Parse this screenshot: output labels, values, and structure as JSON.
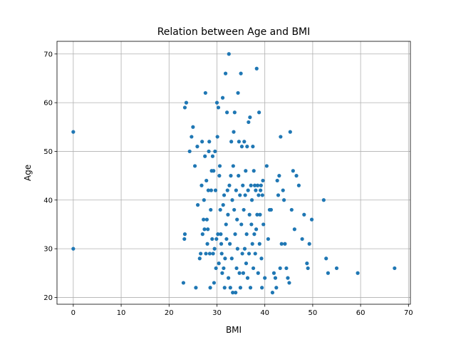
{
  "chart_data": {
    "type": "scatter",
    "title": "Relation between Age and BMI",
    "xlabel": "BMI",
    "ylabel": "Age",
    "xlim": [
      -3.4,
      70.4
    ],
    "ylim": [
      18.6,
      72.6
    ],
    "xticks": [
      0,
      10,
      20,
      30,
      40,
      50,
      60,
      70
    ],
    "yticks": [
      20,
      30,
      40,
      50,
      60,
      70
    ],
    "grid": true,
    "point_color": "#1f77b4",
    "points": [
      [
        0,
        54
      ],
      [
        0,
        30
      ],
      [
        23.0,
        23
      ],
      [
        23.3,
        59
      ],
      [
        23.6,
        60
      ],
      [
        23.3,
        33
      ],
      [
        23.2,
        32
      ],
      [
        24.3,
        50
      ],
      [
        24.7,
        53
      ],
      [
        25.0,
        55
      ],
      [
        25.4,
        47
      ],
      [
        25.6,
        22
      ],
      [
        25.9,
        51
      ],
      [
        26.0,
        39
      ],
      [
        26.4,
        28
      ],
      [
        26.6,
        29
      ],
      [
        26.8,
        43
      ],
      [
        26.9,
        52
      ],
      [
        27.0,
        33
      ],
      [
        27.2,
        36
      ],
      [
        27.3,
        40
      ],
      [
        27.4,
        34
      ],
      [
        27.5,
        49
      ],
      [
        27.6,
        62
      ],
      [
        27.7,
        29
      ],
      [
        27.8,
        44
      ],
      [
        27.9,
        36
      ],
      [
        28.0,
        31
      ],
      [
        28.1,
        34
      ],
      [
        28.2,
        42
      ],
      [
        28.3,
        50
      ],
      [
        28.4,
        52
      ],
      [
        28.5,
        29
      ],
      [
        28.6,
        22
      ],
      [
        28.7,
        38
      ],
      [
        28.8,
        42
      ],
      [
        28.9,
        46
      ],
      [
        29.0,
        32
      ],
      [
        29.1,
        49
      ],
      [
        29.2,
        29
      ],
      [
        29.3,
        46
      ],
      [
        29.4,
        23
      ],
      [
        29.5,
        30
      ],
      [
        29.6,
        50
      ],
      [
        29.7,
        42
      ],
      [
        29.8,
        26
      ],
      [
        29.9,
        32
      ],
      [
        30.0,
        60
      ],
      [
        30.1,
        53
      ],
      [
        30.2,
        33
      ],
      [
        30.3,
        59
      ],
      [
        30.4,
        27
      ],
      [
        30.5,
        45
      ],
      [
        30.6,
        47
      ],
      [
        30.7,
        38
      ],
      [
        30.8,
        33
      ],
      [
        30.9,
        31
      ],
      [
        31.0,
        29
      ],
      [
        31.1,
        25
      ],
      [
        31.2,
        61
      ],
      [
        31.3,
        39
      ],
      [
        31.4,
        26
      ],
      [
        31.5,
        41
      ],
      [
        31.6,
        22
      ],
      [
        31.7,
        28
      ],
      [
        31.8,
        66
      ],
      [
        31.9,
        35
      ],
      [
        32.0,
        32
      ],
      [
        32.1,
        58
      ],
      [
        32.2,
        42
      ],
      [
        32.3,
        37
      ],
      [
        32.4,
        24
      ],
      [
        32.5,
        70
      ],
      [
        32.6,
        43
      ],
      [
        32.7,
        31
      ],
      [
        32.8,
        22
      ],
      [
        32.9,
        45
      ],
      [
        33.0,
        52
      ],
      [
        33.1,
        28
      ],
      [
        33.2,
        40
      ],
      [
        33.3,
        21
      ],
      [
        33.4,
        47
      ],
      [
        33.5,
        54
      ],
      [
        33.6,
        38
      ],
      [
        33.7,
        58
      ],
      [
        33.8,
        33
      ],
      [
        33.9,
        21
      ],
      [
        34.0,
        42
      ],
      [
        34.1,
        26
      ],
      [
        34.2,
        36
      ],
      [
        34.3,
        30
      ],
      [
        34.4,
        62
      ],
      [
        34.5,
        45
      ],
      [
        34.6,
        52
      ],
      [
        34.7,
        25
      ],
      [
        34.8,
        41
      ],
      [
        34.9,
        22
      ],
      [
        35.0,
        66
      ],
      [
        35.1,
        35
      ],
      [
        35.2,
        51
      ],
      [
        35.3,
        29
      ],
      [
        35.4,
        43
      ],
      [
        35.5,
        25
      ],
      [
        35.6,
        38
      ],
      [
        35.7,
        52
      ],
      [
        35.8,
        30
      ],
      [
        35.9,
        41
      ],
      [
        36.0,
        46
      ],
      [
        36.1,
        27
      ],
      [
        36.2,
        33
      ],
      [
        36.3,
        51
      ],
      [
        36.4,
        24
      ],
      [
        36.5,
        42
      ],
      [
        36.6,
        56
      ],
      [
        36.7,
        29
      ],
      [
        36.8,
        37
      ],
      [
        36.9,
        57
      ],
      [
        37.0,
        22
      ],
      [
        37.1,
        43
      ],
      [
        37.2,
        35
      ],
      [
        37.3,
        40
      ],
      [
        37.4,
        31
      ],
      [
        37.5,
        51
      ],
      [
        37.6,
        26
      ],
      [
        37.7,
        46
      ],
      [
        37.8,
        33
      ],
      [
        37.9,
        43
      ],
      [
        38.0,
        29
      ],
      [
        38.1,
        42
      ],
      [
        38.2,
        34
      ],
      [
        38.3,
        67
      ],
      [
        38.4,
        37
      ],
      [
        38.5,
        43
      ],
      [
        38.6,
        25
      ],
      [
        38.7,
        41
      ],
      [
        38.8,
        58
      ],
      [
        38.9,
        31
      ],
      [
        39.0,
        37
      ],
      [
        39.1,
        42
      ],
      [
        39.2,
        43
      ],
      [
        39.3,
        28
      ],
      [
        39.4,
        22
      ],
      [
        39.5,
        41
      ],
      [
        39.6,
        44
      ],
      [
        39.7,
        35
      ],
      [
        40.0,
        24
      ],
      [
        40.4,
        47
      ],
      [
        40.7,
        32
      ],
      [
        41.0,
        38
      ],
      [
        41.3,
        38
      ],
      [
        41.6,
        21
      ],
      [
        41.9,
        25
      ],
      [
        42.2,
        24
      ],
      [
        42.4,
        22
      ],
      [
        42.6,
        44
      ],
      [
        42.8,
        41
      ],
      [
        43.0,
        45
      ],
      [
        43.2,
        26
      ],
      [
        43.3,
        53
      ],
      [
        43.5,
        31
      ],
      [
        43.8,
        42
      ],
      [
        44.0,
        40
      ],
      [
        44.2,
        31
      ],
      [
        44.5,
        26
      ],
      [
        44.8,
        24
      ],
      [
        45.1,
        23
      ],
      [
        45.3,
        54
      ],
      [
        45.6,
        38
      ],
      [
        45.9,
        46
      ],
      [
        46.2,
        34
      ],
      [
        46.6,
        45
      ],
      [
        47.1,
        43
      ],
      [
        47.8,
        32
      ],
      [
        48.2,
        37
      ],
      [
        48.8,
        27
      ],
      [
        49.0,
        26
      ],
      [
        49.3,
        31
      ],
      [
        49.8,
        36
      ],
      [
        52.3,
        40
      ],
      [
        52.8,
        28
      ],
      [
        53.2,
        25
      ],
      [
        55.0,
        26
      ],
      [
        59.4,
        25
      ],
      [
        67.1,
        26
      ]
    ]
  }
}
